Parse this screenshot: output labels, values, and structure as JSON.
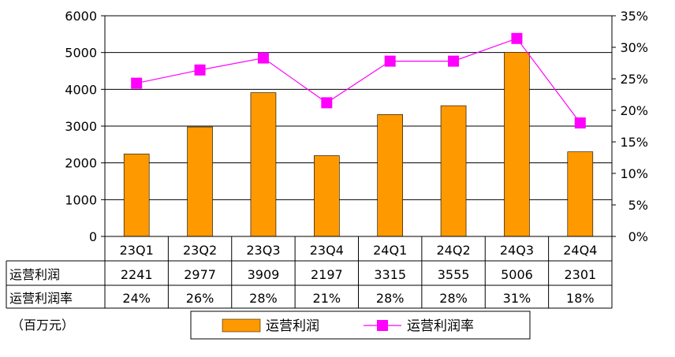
{
  "chart_data": {
    "type": "bar",
    "categories": [
      "23Q1",
      "23Q2",
      "23Q3",
      "23Q4",
      "24Q1",
      "24Q2",
      "24Q3",
      "24Q4"
    ],
    "series": [
      {
        "name": "运营利润",
        "type": "bar",
        "axis": "left",
        "color": "#FF9900",
        "values": [
          2241,
          2977,
          3909,
          2197,
          3315,
          3555,
          5006,
          2301
        ]
      },
      {
        "name": "运营利润率",
        "type": "line",
        "axis": "right",
        "color": "#FF00FF",
        "values": [
          0.24,
          0.26,
          0.28,
          0.21,
          0.28,
          0.28,
          0.31,
          0.18
        ],
        "plot_values": [
          0.243,
          0.264,
          0.283,
          0.212,
          0.278,
          0.278,
          0.314,
          0.18
        ]
      }
    ],
    "y_left": {
      "min": 0,
      "max": 6000,
      "ticks": [
        "0",
        "1000",
        "2000",
        "3000",
        "4000",
        "5000",
        "6000"
      ]
    },
    "y_right": {
      "min": 0,
      "max": 0.35,
      "ticks": [
        "0%",
        "5%",
        "10%",
        "15%",
        "20%",
        "25%",
        "30%",
        "35%"
      ]
    },
    "grid": true,
    "legend_position": "bottom",
    "unit_note": "（百万元）",
    "data_table": {
      "rows": [
        {
          "label": "运营利润",
          "cells": [
            "2241",
            "2977",
            "3909",
            "2197",
            "3315",
            "3555",
            "5006",
            "2301"
          ]
        },
        {
          "label": "运营利润率",
          "cells": [
            "24%",
            "26%",
            "28%",
            "21%",
            "28%",
            "28%",
            "31%",
            "18%"
          ]
        }
      ]
    }
  }
}
